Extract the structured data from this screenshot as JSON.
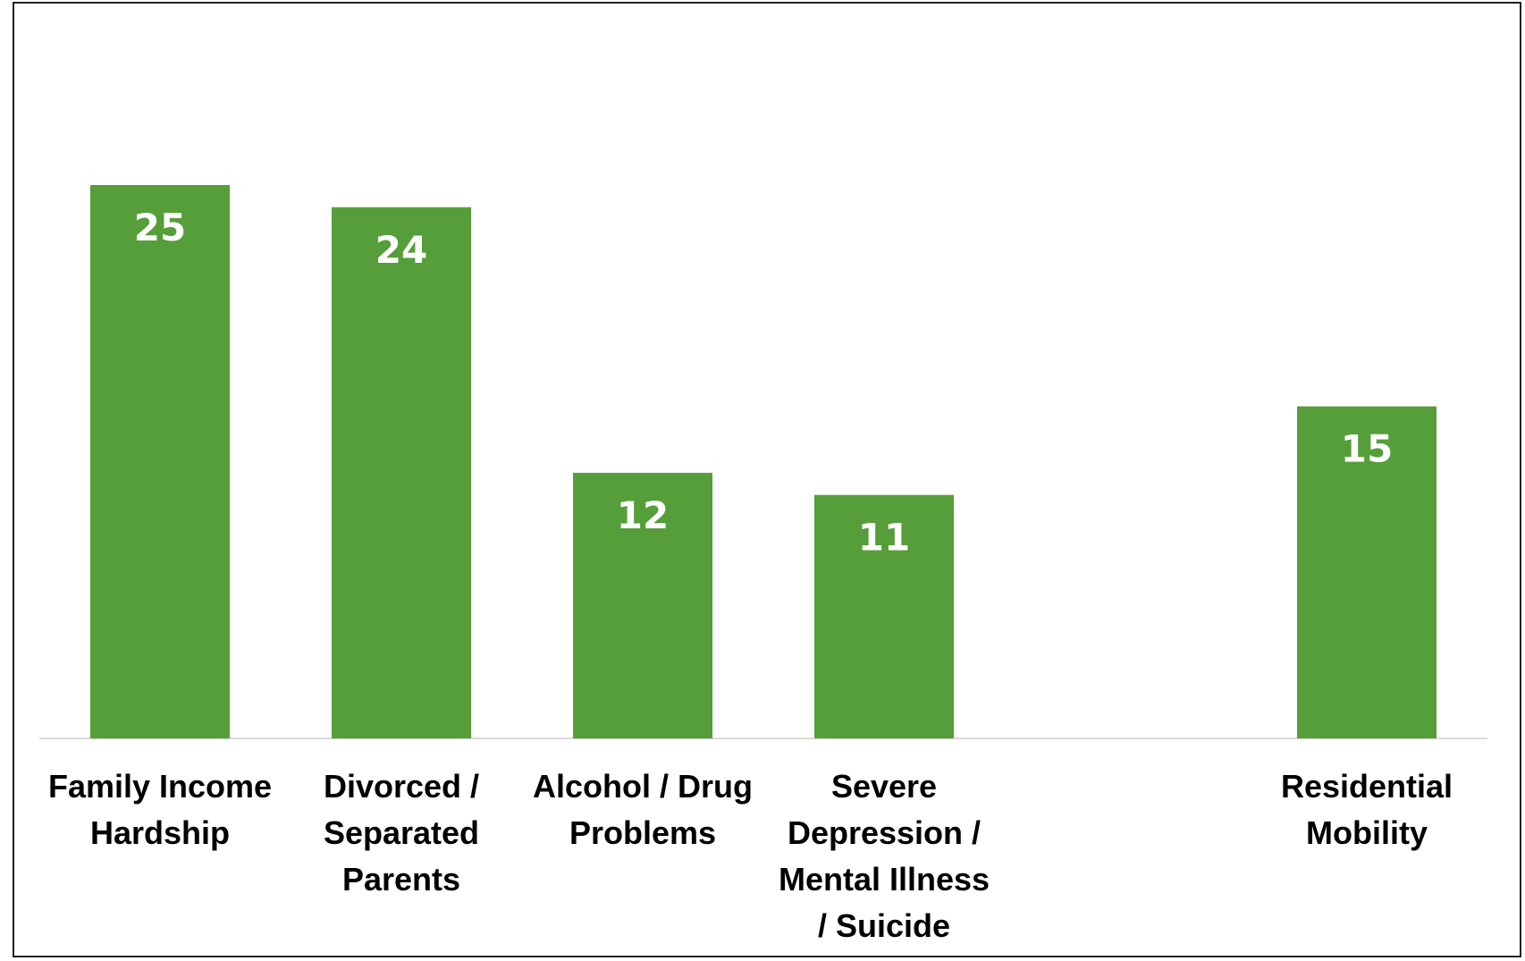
{
  "chart_data": {
    "type": "bar",
    "categories": [
      [
        "Family Income",
        "Hardship"
      ],
      [
        "Divorced /",
        "Separated",
        "Parents"
      ],
      [
        "Alcohol / Drug",
        "Problems"
      ],
      [
        "Severe",
        "Depression /",
        "Mental Illness",
        "/ Suicide"
      ],
      [
        ""
      ],
      [
        "Residential",
        "Mobility"
      ]
    ],
    "values": [
      25,
      24,
      12,
      11,
      null,
      15
    ],
    "data_labels": [
      "25",
      "24",
      "12",
      "11",
      "",
      "15"
    ],
    "title": "",
    "xlabel": "",
    "ylabel": "",
    "ylim": [
      0,
      30
    ],
    "grid": false,
    "legend": "none",
    "bar_color": "#559e3a",
    "axis_color": "#d9d9d9"
  }
}
